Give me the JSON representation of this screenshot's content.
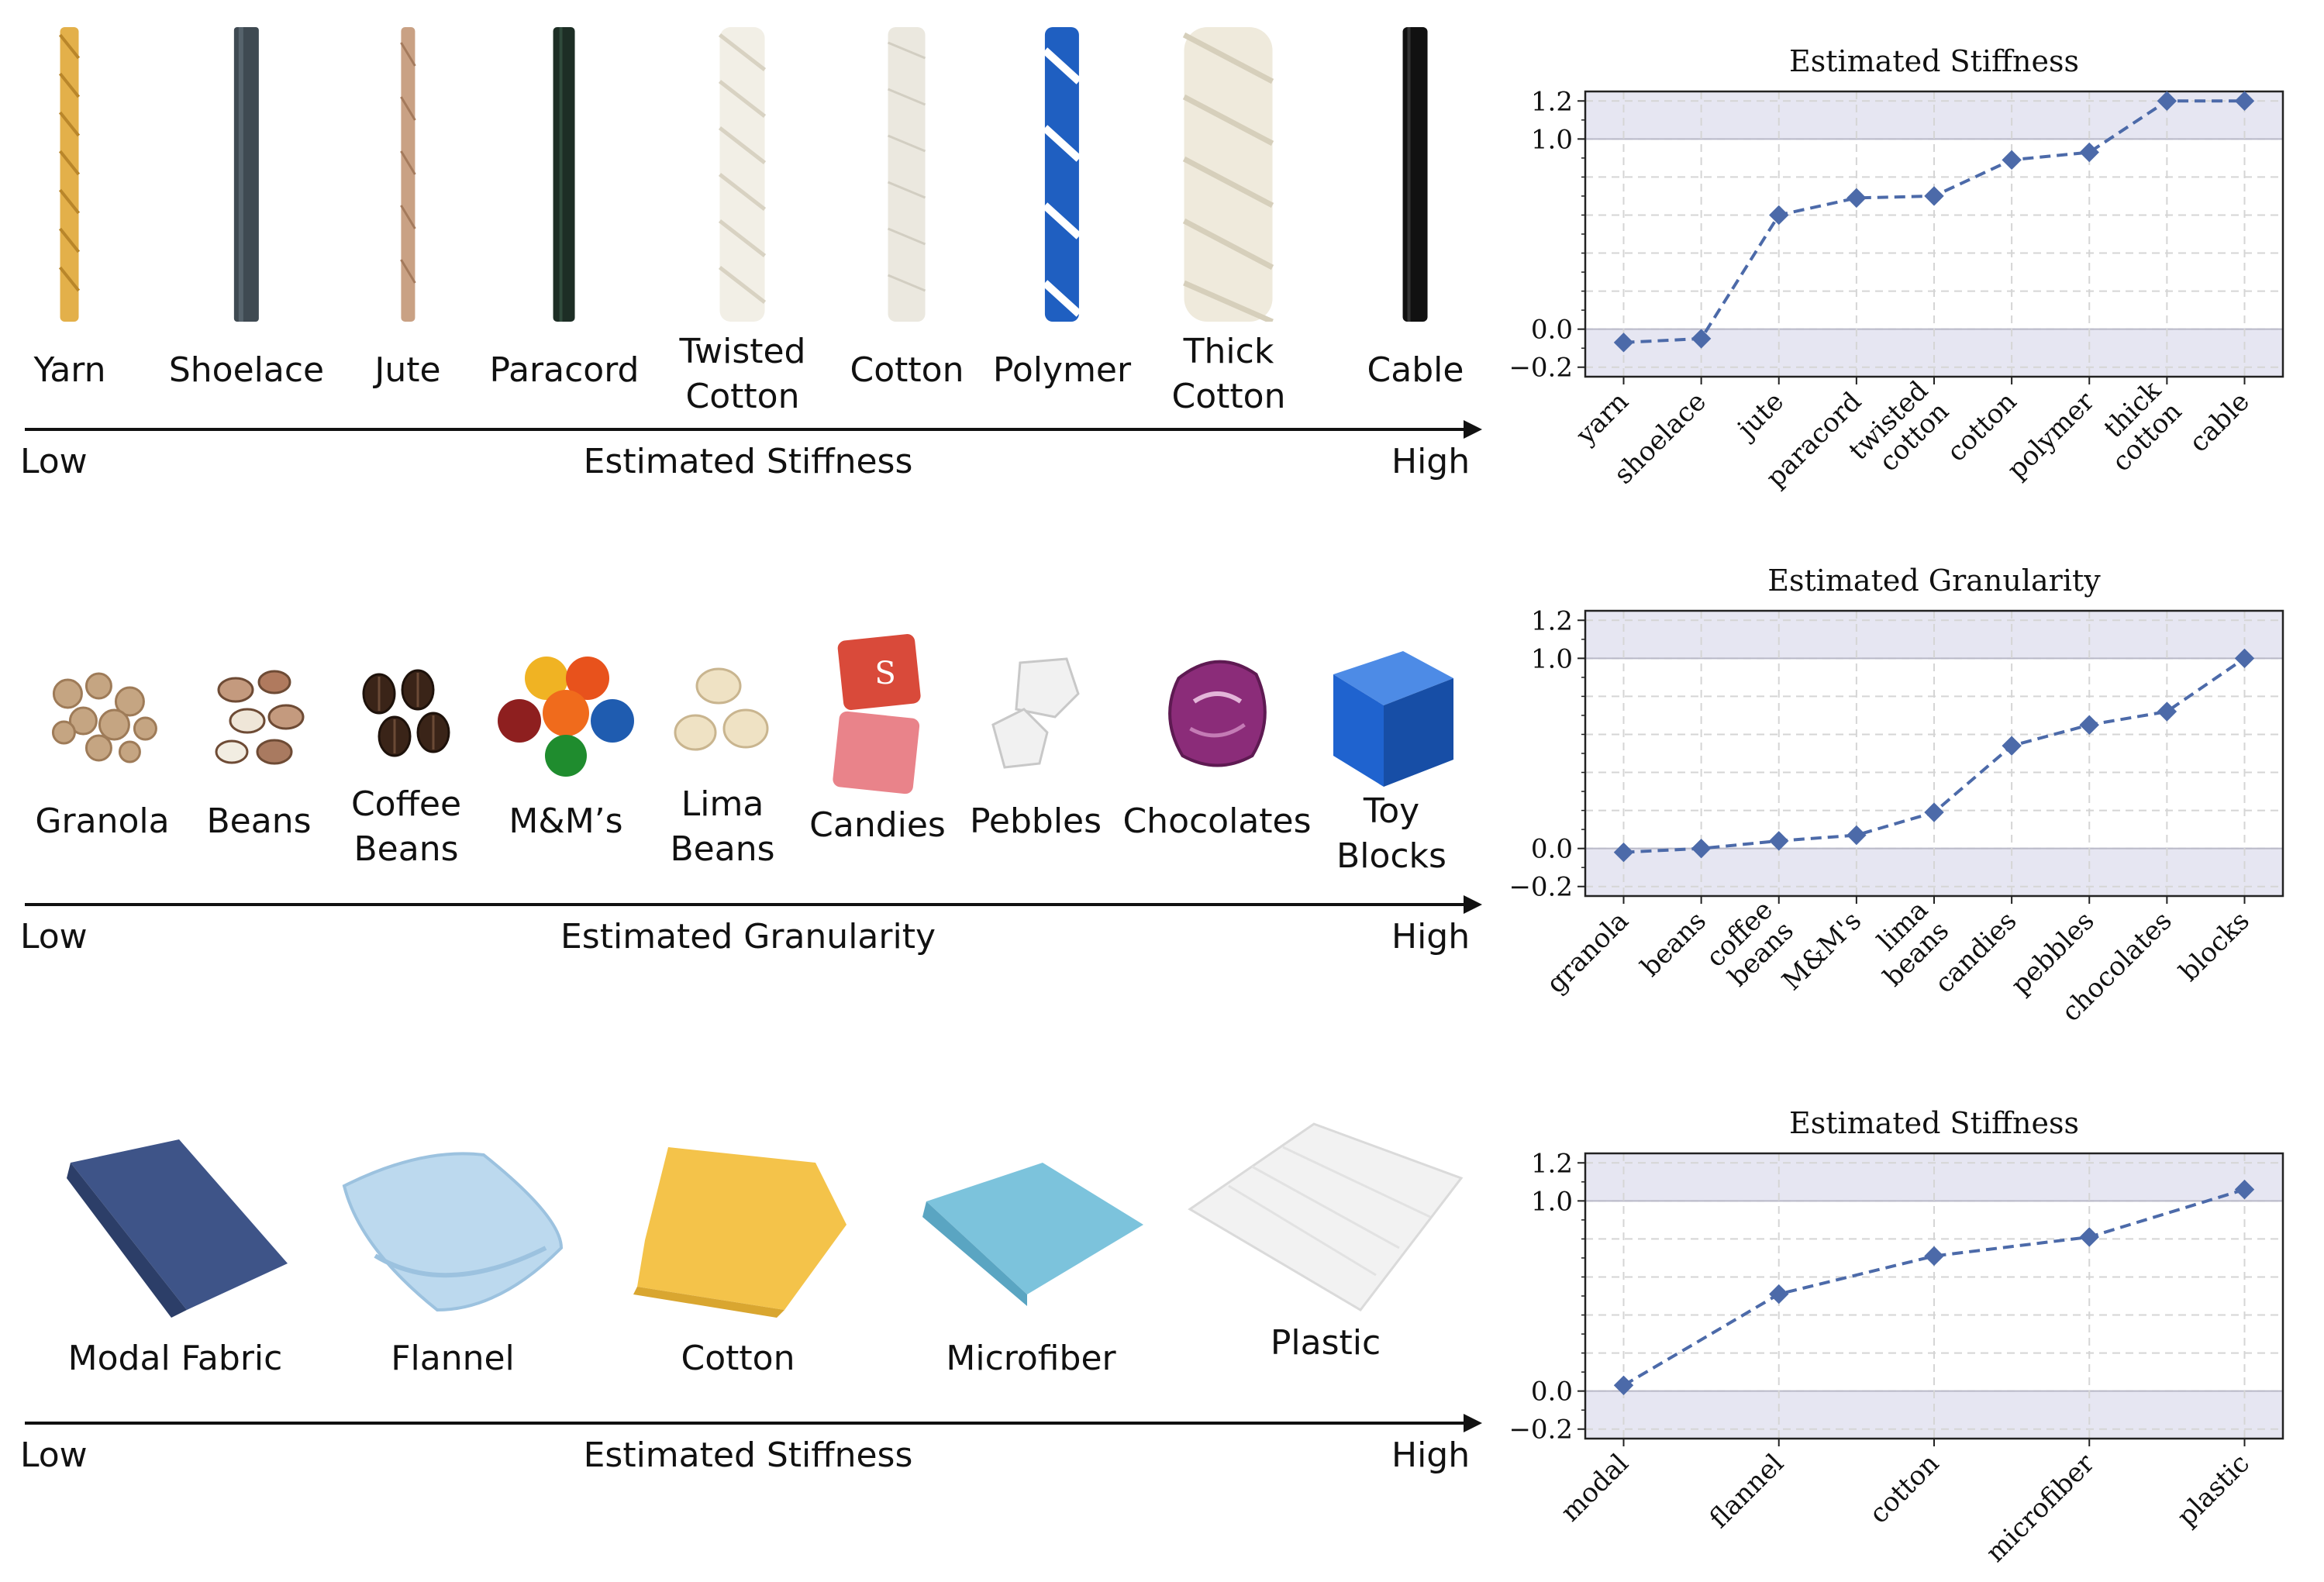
{
  "rows": [
    {
      "id": "rope",
      "items": [
        {
          "label": "Yarn",
          "icon": "yarn-rope-icon",
          "color": "#e3b04a"
        },
        {
          "label": "Shoelace",
          "icon": "shoelace-rope-icon",
          "color": "#3f4a52"
        },
        {
          "label": "Jute",
          "icon": "jute-rope-icon",
          "color": "#c9a184"
        },
        {
          "label": "Paracord",
          "icon": "paracord-rope-icon",
          "color": "#1d2e25"
        },
        {
          "label": "Twisted\nCotton",
          "icon": "twisted-cotton-rope-icon",
          "color": "#f2efe6"
        },
        {
          "label": "Cotton",
          "icon": "cotton-rope-icon",
          "color": "#ebe8df"
        },
        {
          "label": "Polymer",
          "icon": "polymer-rope-icon",
          "color": "#1f5fc1"
        },
        {
          "label": "Thick\nCotton",
          "icon": "thick-cotton-rope-icon",
          "color": "#efeadc"
        },
        {
          "label": "Cable",
          "icon": "cable-icon",
          "color": "#111111"
        }
      ],
      "axis": {
        "low": "Low",
        "title": "Estimated Stiffness",
        "high": "High"
      }
    },
    {
      "id": "granular",
      "items": [
        {
          "label": "Granola",
          "icon": "granola-icon",
          "color": "#c5a582"
        },
        {
          "label": "Beans",
          "icon": "beans-icon",
          "color": "#b48a70"
        },
        {
          "label": "Coffee\nBeans",
          "icon": "coffee-beans-icon",
          "color": "#3a2418"
        },
        {
          "label": "M&M’s",
          "icon": "mm-candies-icon",
          "color": "#e8521c"
        },
        {
          "label": "Lima\nBeans",
          "icon": "lima-beans-icon",
          "color": "#efe2c4"
        },
        {
          "label": "Candies",
          "icon": "candies-icon",
          "color": "#d94a3a"
        },
        {
          "label": "Pebbles",
          "icon": "pebbles-icon",
          "color": "#f1f1f1"
        },
        {
          "label": "Chocolates",
          "icon": "chocolate-icon",
          "color": "#8b2c79"
        },
        {
          "label": "Toy\nBlocks",
          "icon": "toy-block-icon",
          "color": "#1f63cf"
        }
      ],
      "axis": {
        "low": "Low",
        "title": "Estimated Granularity",
        "high": "High"
      }
    },
    {
      "id": "fabric",
      "items": [
        {
          "label": "Modal Fabric",
          "icon": "modal-fabric-icon",
          "color": "#3e5488"
        },
        {
          "label": "Flannel",
          "icon": "flannel-icon",
          "color": "#bcd9ee"
        },
        {
          "label": "Cotton",
          "icon": "cotton-cloth-icon",
          "color": "#f4c34a"
        },
        {
          "label": "Microfiber",
          "icon": "microfiber-icon",
          "color": "#7cc3dc"
        },
        {
          "label": "Plastic",
          "icon": "plastic-sheet-icon",
          "color": "#f1f1f1"
        }
      ],
      "axis": {
        "low": "Low",
        "title": "Estimated Stiffness",
        "high": "High"
      }
    }
  ],
  "chart_data": [
    {
      "type": "line",
      "title": "Estimated Stiffness",
      "categories": [
        "yarn",
        "shoelace",
        "jute",
        "paracord",
        "twisted\ncotton",
        "cotton",
        "polymer",
        "thick\ncotton",
        "cable"
      ],
      "values": [
        -0.07,
        -0.05,
        0.6,
        0.69,
        0.7,
        0.89,
        0.93,
        1.2,
        1.2
      ],
      "ylim": [
        -0.25,
        1.25
      ],
      "yticks": [
        "1.2",
        "1.0",
        "0.0",
        "−0.2"
      ],
      "ytick_values": [
        1.2,
        1.0,
        0.0,
        -0.2
      ],
      "shaded_bands": [
        [
          1.0,
          1.25
        ],
        [
          -0.25,
          0.0
        ]
      ],
      "grid": true,
      "marker": "diamond",
      "line_style": "dashed",
      "color": "#4c6aa9"
    },
    {
      "type": "line",
      "title": "Estimated Granularity",
      "categories": [
        "granola",
        "beans",
        "coffee\nbeans",
        "M&M's",
        "lima\nbeans",
        "candies",
        "pebbles",
        "chocolates",
        "blocks"
      ],
      "values": [
        -0.02,
        0.0,
        0.04,
        0.07,
        0.19,
        0.54,
        0.65,
        0.72,
        1.0
      ],
      "ylim": [
        -0.25,
        1.25
      ],
      "yticks": [
        "1.2",
        "1.0",
        "0.0",
        "−0.2"
      ],
      "ytick_values": [
        1.2,
        1.0,
        0.0,
        -0.2
      ],
      "shaded_bands": [
        [
          1.0,
          1.25
        ],
        [
          -0.25,
          0.0
        ]
      ],
      "grid": true,
      "marker": "diamond",
      "line_style": "dashed",
      "color": "#4c6aa9"
    },
    {
      "type": "line",
      "title": "Estimated Stiffness",
      "categories": [
        "modal",
        "flannel",
        "cotton",
        "microfiber",
        "plastic"
      ],
      "values": [
        0.03,
        0.51,
        0.71,
        0.81,
        1.06
      ],
      "ylim": [
        -0.25,
        1.25
      ],
      "yticks": [
        "1.2",
        "1.0",
        "0.0",
        "−0.2"
      ],
      "ytick_values": [
        1.2,
        1.0,
        0.0,
        -0.2
      ],
      "shaded_bands": [
        [
          1.0,
          1.25
        ],
        [
          -0.25,
          0.0
        ]
      ],
      "grid": true,
      "marker": "diamond",
      "line_style": "dashed",
      "color": "#4c6aa9"
    }
  ]
}
